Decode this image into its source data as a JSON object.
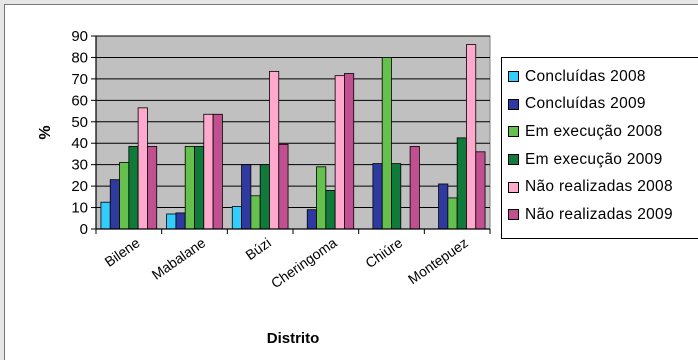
{
  "chart_data": {
    "type": "bar",
    "title": "",
    "xlabel": "Distrito",
    "ylabel": "%",
    "ylim": [
      0,
      90
    ],
    "ytick_step": 10,
    "grid": true,
    "legend_position": "right",
    "plot_background": "#c0c0c0",
    "categories": [
      "Bilene",
      "Mabalane",
      "Búzi",
      "Cheringoma",
      "Chiúre",
      "Montepuez"
    ],
    "series": [
      {
        "name": "Concluídas 2008",
        "color": "#33ccff",
        "values": [
          12.5,
          7,
          10.5,
          0,
          0,
          0
        ]
      },
      {
        "name": "Concluídas 2009",
        "color": "#2e3a9f",
        "values": [
          23,
          7.5,
          30,
          9,
          30.5,
          21
        ]
      },
      {
        "name": "Em execução 2008",
        "color": "#66c04d",
        "values": [
          31,
          38.5,
          15.5,
          29,
          80,
          14.5
        ]
      },
      {
        "name": "Em execução 2009",
        "color": "#0f7a3a",
        "values": [
          38.5,
          38.5,
          30,
          18,
          30.5,
          42.5
        ]
      },
      {
        "name": "Não realizadas 2008",
        "color": "#ffaacc",
        "values": [
          56.5,
          53.5,
          73.5,
          71.5,
          0,
          86
        ]
      },
      {
        "name": "Não realizadas 2009",
        "color": "#c0508f",
        "values": [
          38.5,
          53.5,
          39.5,
          72.5,
          38.5,
          36
        ]
      }
    ]
  }
}
